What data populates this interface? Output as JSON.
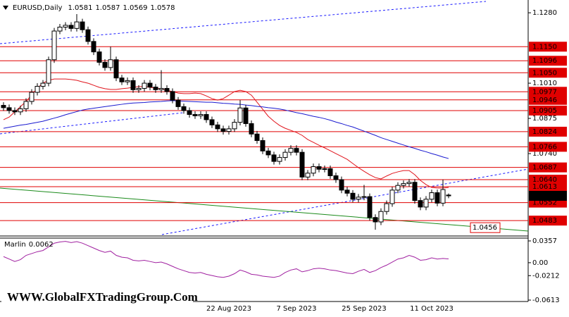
{
  "chart_data": [
    {
      "type": "candlestick",
      "title": "EURUSD,Daily",
      "categories": [
        null,
        null,
        null,
        null,
        null,
        null,
        null,
        null,
        null,
        null,
        null,
        null,
        null,
        null,
        null,
        null,
        null,
        null,
        null,
        null,
        null,
        null,
        null,
        null,
        null,
        null,
        null,
        null,
        null,
        null,
        null,
        null,
        null,
        null,
        null,
        null,
        null,
        null,
        null,
        null,
        "22 Aug 2023",
        null,
        null,
        null,
        null,
        null,
        null,
        null,
        null,
        null,
        null,
        null,
        "7 Sep 2023",
        null,
        null,
        null,
        null,
        null,
        null,
        null,
        null,
        null,
        null,
        null,
        "25 Sep 2023",
        null,
        null,
        null,
        null,
        null,
        null,
        null,
        null,
        null,
        null,
        null,
        "11 Oct 2023",
        null,
        null,
        null
      ],
      "candles": [
        [
          1.0925,
          1.0937,
          1.0904,
          1.0916
        ],
        [
          1.0916,
          1.0928,
          1.0893,
          1.0905
        ],
        [
          1.0905,
          1.0917,
          1.0888,
          1.09
        ],
        [
          1.09,
          1.0924,
          1.0888,
          1.0912
        ],
        [
          1.0912,
          1.0952,
          1.09,
          1.094
        ],
        [
          1.094,
          1.0987,
          1.0928,
          1.0975
        ],
        [
          1.0975,
          1.101,
          1.0963,
          1.0998
        ],
        [
          1.0998,
          1.1022,
          1.0986,
          1.101
        ],
        [
          1.101,
          1.1112,
          1.0998,
          1.11
        ],
        [
          1.11,
          1.1222,
          1.1088,
          1.121
        ],
        [
          1.121,
          1.1237,
          1.1198,
          1.1225
        ],
        [
          1.1225,
          1.1244,
          1.1213,
          1.1232
        ],
        [
          1.1232,
          1.1244,
          1.1208,
          1.122
        ],
        [
          1.122,
          1.1275,
          1.1208,
          1.1245
        ],
        [
          1.1245,
          1.1257,
          1.1203,
          1.1215
        ],
        [
          1.1215,
          1.1227,
          1.1158,
          1.117
        ],
        [
          1.117,
          1.1182,
          1.1118,
          1.113
        ],
        [
          1.113,
          1.1142,
          1.1078,
          1.109
        ],
        [
          1.109,
          1.1102,
          1.1058,
          1.107
        ],
        [
          1.107,
          1.115,
          1.1058,
          1.11
        ],
        [
          1.11,
          1.1112,
          1.1018,
          1.103
        ],
        [
          1.103,
          1.1042,
          1.1003,
          1.1015
        ],
        [
          1.1015,
          1.1032,
          1.1003,
          1.102
        ],
        [
          1.102,
          1.1032,
          1.0973,
          1.0985
        ],
        [
          1.0985,
          1.1002,
          1.0973,
          1.099
        ],
        [
          1.099,
          1.1022,
          1.0978,
          1.101
        ],
        [
          1.101,
          1.1022,
          1.0983,
          1.0995
        ],
        [
          1.0995,
          1.1007,
          1.0973,
          1.0985
        ],
        [
          1.0985,
          1.106,
          1.0973,
          1.099
        ],
        [
          1.099,
          1.1002,
          1.0966,
          1.0978
        ],
        [
          1.0978,
          1.099,
          1.0933,
          1.0945
        ],
        [
          1.0945,
          1.0957,
          1.0908,
          1.092
        ],
        [
          1.092,
          1.0932,
          1.0893,
          1.0905
        ],
        [
          1.0905,
          1.0917,
          1.0878,
          1.089
        ],
        [
          1.089,
          1.0902,
          1.0873,
          1.0885
        ],
        [
          1.0885,
          1.0902,
          1.0873,
          1.089
        ],
        [
          1.089,
          1.0902,
          1.0858,
          1.087
        ],
        [
          1.087,
          1.0882,
          1.0838,
          1.085
        ],
        [
          1.085,
          1.0862,
          1.0823,
          1.0835
        ],
        [
          1.0835,
          1.0847,
          1.0813,
          1.0825
        ],
        [
          1.0825,
          1.0847,
          1.0813,
          1.0835
        ],
        [
          1.0835,
          1.0872,
          1.0823,
          1.086
        ],
        [
          1.086,
          1.0945,
          1.0848,
          1.0915
        ],
        [
          1.0915,
          1.0927,
          1.0843,
          1.0855
        ],
        [
          1.0855,
          1.0867,
          1.0803,
          1.0815
        ],
        [
          1.0815,
          1.0827,
          1.0778,
          1.079
        ],
        [
          1.079,
          1.0802,
          1.0738,
          1.075
        ],
        [
          1.075,
          1.0762,
          1.0723,
          1.0735
        ],
        [
          1.0735,
          1.0747,
          1.0698,
          1.071
        ],
        [
          1.071,
          1.0737,
          1.0698,
          1.0725
        ],
        [
          1.0725,
          1.0757,
          1.0713,
          1.0745
        ],
        [
          1.0745,
          1.0772,
          1.0733,
          1.076
        ],
        [
          1.076,
          1.0772,
          1.0733,
          1.0745
        ],
        [
          1.0745,
          1.0757,
          1.0638,
          1.065
        ],
        [
          1.065,
          1.0677,
          1.0638,
          1.0665
        ],
        [
          1.0665,
          1.0702,
          1.0653,
          1.069
        ],
        [
          1.069,
          1.0702,
          1.0668,
          1.068
        ],
        [
          1.068,
          1.0694,
          1.0668,
          1.0682
        ],
        [
          1.0682,
          1.0694,
          1.0643,
          1.0655
        ],
        [
          1.0655,
          1.0667,
          1.0628,
          1.064
        ],
        [
          1.064,
          1.0652,
          1.0588,
          1.06
        ],
        [
          1.06,
          1.0612,
          1.0576,
          1.0588
        ],
        [
          1.0588,
          1.06,
          1.0553,
          1.0565
        ],
        [
          1.0565,
          1.0585,
          1.0553,
          1.0573
        ],
        [
          1.0573,
          1.062,
          1.0561,
          1.0575
        ],
        [
          1.0575,
          1.0587,
          1.0483,
          1.0495
        ],
        [
          1.0495,
          1.0507,
          1.0448,
          1.0478
        ],
        [
          1.0478,
          1.053,
          1.0466,
          1.0518
        ],
        [
          1.0518,
          1.056,
          1.0506,
          1.0548
        ],
        [
          1.0548,
          1.0612,
          1.0536,
          1.06
        ],
        [
          1.06,
          1.063,
          1.0588,
          1.0618
        ],
        [
          1.0618,
          1.0637,
          1.0606,
          1.0625
        ],
        [
          1.0625,
          1.0642,
          1.0613,
          1.063
        ],
        [
          1.063,
          1.0642,
          1.0548,
          1.056
        ],
        [
          1.056,
          1.0572,
          1.0523,
          1.0535
        ],
        [
          1.0535,
          1.0577,
          1.0523,
          1.0565
        ],
        [
          1.0565,
          1.0602,
          1.0553,
          1.059
        ],
        [
          1.059,
          1.0602,
          1.0538,
          1.055
        ],
        [
          1.055,
          1.064,
          1.0538,
          1.0602
        ],
        [
          1.0581,
          1.0587,
          1.0569,
          1.0578
        ]
      ],
      "up_color": "#ffffff",
      "down_color": "#000000",
      "series": [
        {
          "color": "#e0141c",
          "values": [
            1.087,
            1.088,
            1.09,
            1.092,
            1.094,
            1.0965,
            1.0991,
            1.101,
            1.1021,
            1.1026,
            1.1026,
            1.1026,
            1.1024,
            1.1021,
            1.1015,
            1.101,
            1.1002,
            1.0994,
            1.0989,
            1.0986,
            1.0986,
            1.0989,
            1.0991,
            1.0994,
            1.0997,
            1.0997,
            1.0994,
            1.0991,
            1.0989,
            1.0983,
            1.0978,
            1.0972,
            1.097,
            1.097,
            1.0972,
            1.097,
            1.0961,
            1.0951,
            1.0945,
            1.0951,
            1.0964,
            1.0978,
            1.0983,
            1.0978,
            1.0964,
            1.0937,
            1.091,
            1.0883,
            1.0864,
            1.0848,
            1.0837,
            1.0829,
            1.0821,
            1.081,
            1.0794,
            1.0783,
            1.0772,
            1.0762,
            1.0751,
            1.074,
            1.0729,
            1.0718,
            1.0702,
            1.0686,
            1.0672,
            1.0659,
            1.0648,
            1.0643,
            1.0654,
            1.0664,
            1.067,
            1.0675,
            1.0675,
            1.0659,
            1.0637,
            1.0621,
            1.061,
            1.0608,
            1.0608,
            1.061
          ]
        },
        {
          "color": "#1a1ad0",
          "values": [
            1.0837,
            1.0841,
            1.0845,
            1.0849,
            1.0852,
            1.0856,
            1.086,
            1.0864,
            1.087,
            1.0876,
            1.0882,
            1.0889,
            1.0895,
            1.0901,
            1.0907,
            1.0911,
            1.0914,
            1.0917,
            1.092,
            1.0923,
            1.0926,
            1.0929,
            1.0932,
            1.0934,
            1.0935,
            1.0936,
            1.0938,
            1.0939,
            1.094,
            1.0942,
            1.0943,
            1.0942,
            1.0941,
            1.094,
            1.0939,
            1.0938,
            1.0937,
            1.0937,
            1.0935,
            1.0933,
            1.0932,
            1.093,
            1.0929,
            1.0926,
            1.0924,
            1.0921,
            1.0919,
            1.0916,
            1.0914,
            1.0911,
            1.0907,
            1.0902,
            1.0897,
            1.0893,
            1.0888,
            1.0883,
            1.0879,
            1.0874,
            1.0868,
            1.0861,
            1.0855,
            1.0848,
            1.0842,
            1.0834,
            1.0826,
            1.0818,
            1.081,
            1.0801,
            1.0794,
            1.0787,
            1.078,
            1.0773,
            1.0766,
            1.076,
            1.0753,
            1.0747,
            1.074,
            1.0734,
            1.0727,
            1.0721
          ]
        }
      ],
      "ylim": [
        1.0424,
        1.1329
      ],
      "yticks": [
        {
          "value": 1.128,
          "label": "1.1280"
        },
        {
          "value": 1.101,
          "label": "1.1010"
        },
        1.0875,
        {
          "value": 1.074,
          "label": "1.0740"
        }
      ],
      "levels": [
        {
          "value": 1.115,
          "label": "1.1150"
        },
        1.1096,
        {
          "value": 1.105,
          "label": "1.1050"
        },
        1.0977,
        1.0946,
        1.0905,
        1.0824,
        1.0766,
        1.0687,
        {
          "value": 1.064,
          "label": "1.0640"
        },
        1.0613,
        1.0552,
        1.0483
      ],
      "level_color": "#e00000",
      "trendline_label": 1.0456
    },
    {
      "type": "line",
      "title": "Marlin",
      "color": "#a020a0",
      "values": [
        0.01,
        0.006,
        0.002,
        0.005,
        0.012,
        0.015,
        0.018,
        0.02,
        0.026,
        0.032,
        0.034,
        0.035,
        0.033,
        0.0345,
        0.032,
        0.028,
        0.024,
        0.02,
        0.017,
        0.019,
        0.012,
        0.009,
        0.008,
        0.004,
        0.003,
        0.004,
        0.002,
        0,
        0.001,
        -0.002,
        -0.006,
        -0.01,
        -0.013,
        -0.016,
        -0.017,
        -0.016,
        -0.019,
        -0.021,
        -0.023,
        -0.024,
        -0.022,
        -0.018,
        -0.012,
        -0.015,
        -0.019,
        -0.02,
        -0.022,
        -0.023,
        -0.024,
        -0.022,
        -0.016,
        -0.012,
        -0.01,
        -0.015,
        -0.013,
        -0.01,
        -0.009,
        -0.01,
        -0.012,
        -0.013,
        -0.015,
        -0.017,
        -0.018,
        -0.014,
        -0.011,
        -0.016,
        -0.013,
        -0.008,
        -0.004,
        0.001,
        0.006,
        0.008,
        0.012,
        0.009,
        0.004,
        0.005,
        0.008,
        0.006,
        0.007,
        0.0062
      ],
      "ylim": [
        -0.0613,
        0.0357
      ],
      "yticks": [
        0.0357,
        {
          "value": 0,
          "label": "0.00"
        },
        -0.0212,
        -0.0613
      ]
    }
  ],
  "watermark": "WWW.GlobalFXTradingGroup.Com"
}
